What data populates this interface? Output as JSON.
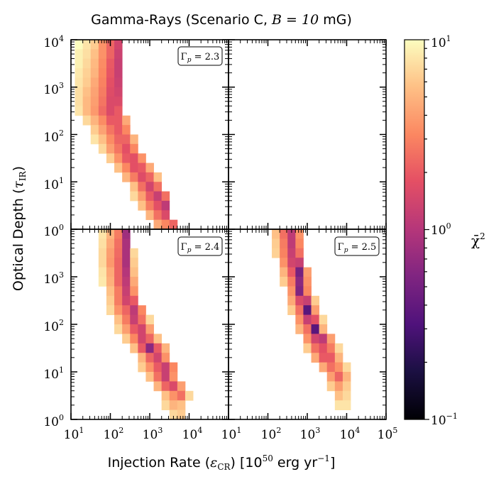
{
  "chart_data": {
    "type": "heatmap",
    "title_prefix": "Gamma-Rays (Scenario C, ",
    "title_math": "B = 10",
    "title_suffix": " mG)",
    "xlabel_prefix": "Injection Rate (",
    "xlabel_sym": "ε",
    "xlabel_sub": "CR",
    "xlabel_suffix": ") [10",
    "xlabel_sup": "50",
    "xlabel_end": " erg yr",
    "xlabel_end_sup": "−1",
    "xlabel_close": "]",
    "ylabel_prefix": "Optical Depth (",
    "ylabel_sym": "τ",
    "ylabel_sub": "IR",
    "ylabel_close": ")",
    "xlim": [
      1,
      5
    ],
    "ylim": [
      0,
      4
    ],
    "axis_scale": "log10",
    "x_ticks": [
      {
        "base": "10",
        "exp": "1"
      },
      {
        "base": "10",
        "exp": "2"
      },
      {
        "base": "10",
        "exp": "3"
      },
      {
        "base": "10",
        "exp": "4"
      },
      {
        "base": "10",
        "exp": "1"
      },
      {
        "base": "10",
        "exp": "2"
      },
      {
        "base": "10",
        "exp": "3"
      },
      {
        "base": "10",
        "exp": "4"
      },
      {
        "base": "10",
        "exp": "5"
      }
    ],
    "y_ticks_top": [
      {
        "base": "10",
        "exp": "4"
      },
      {
        "base": "10",
        "exp": "3"
      },
      {
        "base": "10",
        "exp": "2"
      },
      {
        "base": "10",
        "exp": "1"
      },
      {
        "base": "10",
        "exp": "0"
      }
    ],
    "y_ticks_bottom": [
      {
        "base": "10",
        "exp": "3"
      },
      {
        "base": "10",
        "exp": "2"
      },
      {
        "base": "10",
        "exp": "1"
      },
      {
        "base": "10",
        "exp": "0"
      }
    ],
    "colorbar": {
      "label": "χ̄",
      "label_sup": "2",
      "scale": "log10",
      "range_log": [
        -1,
        1
      ],
      "ticks": [
        {
          "base": "10",
          "exp": "1",
          "log": 1
        },
        {
          "base": "10",
          "exp": "0",
          "log": 0
        },
        {
          "base": "10",
          "exp": "−1",
          "log": -1
        }
      ],
      "colormap": "magma"
    },
    "panels": [
      {
        "id": "top-left",
        "label_sym": "Γ",
        "label_sub": "p",
        "label_val": " = 2.3",
        "rows": [
          {
            "y0": 3.8,
            "y1": 4.0,
            "x0": 1.1,
            "values": [
              1.0,
              0.9,
              0.8,
              0.55,
              0.35,
              0.15
            ]
          },
          {
            "y0": 3.6,
            "y1": 3.8,
            "x0": 1.1,
            "values": [
              0.95,
              0.88,
              0.75,
              0.55,
              0.35,
              0.12
            ]
          },
          {
            "y0": 3.4,
            "y1": 3.6,
            "x0": 1.1,
            "values": [
              0.95,
              0.85,
              0.72,
              0.52,
              0.3,
              0.1
            ]
          },
          {
            "y0": 3.2,
            "y1": 3.4,
            "x0": 1.1,
            "values": [
              0.92,
              0.82,
              0.7,
              0.5,
              0.28,
              0.1
            ]
          },
          {
            "y0": 3.0,
            "y1": 3.2,
            "x0": 1.1,
            "values": [
              0.9,
              0.8,
              0.65,
              0.48,
              0.25,
              0.12
            ]
          },
          {
            "y0": 2.8,
            "y1": 3.0,
            "x0": 1.1,
            "values": [
              0.88,
              0.75,
              0.62,
              0.45,
              0.22,
              0.15
            ]
          },
          {
            "y0": 2.6,
            "y1": 2.8,
            "x0": 1.1,
            "values": [
              0.88,
              0.72,
              0.6,
              0.42,
              0.2,
              0.2
            ]
          },
          {
            "y0": 2.4,
            "y1": 2.6,
            "x0": 1.1,
            "values": [
              0.9,
              0.72,
              0.58,
              0.38,
              0.2,
              0.3
            ]
          },
          {
            "y0": 2.2,
            "y1": 2.4,
            "x0": 1.3,
            "values": [
              0.85,
              0.7,
              0.52,
              0.3,
              0.3,
              0.65
            ]
          },
          {
            "y0": 2.0,
            "y1": 2.2,
            "x0": 1.5,
            "values": [
              0.8,
              0.62,
              0.42,
              0.3,
              0.5
            ]
          },
          {
            "y0": 1.8,
            "y1": 2.0,
            "x0": 1.5,
            "values": [
              0.9,
              0.75,
              0.52,
              0.35,
              0.35,
              0.7
            ]
          },
          {
            "y0": 1.6,
            "y1": 1.8,
            "x0": 1.7,
            "values": [
              0.85,
              0.6,
              0.42,
              0.25,
              0.5
            ]
          },
          {
            "y0": 1.4,
            "y1": 1.6,
            "x0": 1.9,
            "values": [
              0.8,
              0.55,
              0.3,
              0.25,
              0.55
            ]
          },
          {
            "y0": 1.2,
            "y1": 1.4,
            "x0": 2.1,
            "values": [
              0.75,
              0.5,
              0.25,
              0.3,
              0.65
            ]
          },
          {
            "y0": 1.0,
            "y1": 1.2,
            "x0": 2.3,
            "values": [
              0.7,
              0.45,
              0.22,
              0.35,
              0.75
            ]
          },
          {
            "y0": 0.8,
            "y1": 1.0,
            "x0": 2.5,
            "values": [
              0.75,
              0.4,
              0.15,
              0.4
            ]
          },
          {
            "y0": 0.6,
            "y1": 0.8,
            "x0": 2.5,
            "values": [
              0.85,
              0.6,
              0.3,
              0.1,
              0.4
            ]
          },
          {
            "y0": 0.4,
            "y1": 0.6,
            "x0": 2.7,
            "values": [
              0.75,
              0.45,
              0.25,
              0.05
            ]
          },
          {
            "y0": 0.2,
            "y1": 0.4,
            "x0": 2.9,
            "values": [
              0.7,
              0.4,
              0.2
            ]
          },
          {
            "y0": 0.0,
            "y1": 0.2,
            "x0": 3.1,
            "values": [
              0.65,
              0.5,
              0.35
            ]
          }
        ]
      },
      {
        "id": "top-right",
        "rows": []
      },
      {
        "id": "bottom-left",
        "label_sym": "Γ",
        "label_sub": "p",
        "label_val": " = 2.4",
        "rows": [
          {
            "y0": 3.8,
            "y1": 4.0,
            "x0": 1.7,
            "values": [
              0.9,
              0.7,
              0.45,
              -0.1
            ]
          },
          {
            "y0": 3.6,
            "y1": 3.8,
            "x0": 1.7,
            "values": [
              0.88,
              0.65,
              0.4,
              -0.05
            ]
          },
          {
            "y0": 3.4,
            "y1": 3.6,
            "x0": 1.7,
            "values": [
              0.85,
              0.6,
              0.38,
              -0.05,
              0.85
            ]
          },
          {
            "y0": 3.2,
            "y1": 3.4,
            "x0": 1.7,
            "values": [
              0.85,
              0.58,
              0.35,
              -0.05,
              0.8
            ]
          },
          {
            "y0": 3.0,
            "y1": 3.2,
            "x0": 1.7,
            "values": [
              0.9,
              0.65,
              0.35,
              0.0,
              0.75
            ]
          },
          {
            "y0": 2.8,
            "y1": 3.0,
            "x0": 1.7,
            "values": [
              0.92,
              0.68,
              0.35,
              0.05,
              0.65
            ]
          },
          {
            "y0": 2.6,
            "y1": 2.8,
            "x0": 1.9,
            "values": [
              0.75,
              0.45,
              0.1,
              0.55
            ]
          },
          {
            "y0": 2.4,
            "y1": 2.6,
            "x0": 1.9,
            "values": [
              0.8,
              0.45,
              0.15,
              0.3
            ]
          },
          {
            "y0": 2.2,
            "y1": 2.4,
            "x0": 1.9,
            "values": [
              0.85,
              0.55,
              0.35,
              0.05,
              0.5
            ]
          },
          {
            "y0": 2.0,
            "y1": 2.2,
            "x0": 2.1,
            "values": [
              0.75,
              0.45,
              0.1,
              0.4,
              0.85
            ]
          },
          {
            "y0": 1.8,
            "y1": 2.0,
            "x0": 2.1,
            "values": [
              0.85,
              0.6,
              0.3,
              0.15,
              0.6
            ]
          },
          {
            "y0": 1.6,
            "y1": 1.8,
            "x0": 2.3,
            "values": [
              0.8,
              0.5,
              0.15,
              0.35,
              0.75
            ]
          },
          {
            "y0": 1.4,
            "y1": 1.6,
            "x0": 2.5,
            "values": [
              0.75,
              0.3,
              -0.2,
              0.3,
              0.7
            ]
          },
          {
            "y0": 1.2,
            "y1": 1.4,
            "x0": 2.7,
            "values": [
              0.7,
              0.35,
              0.15,
              0.55
            ]
          },
          {
            "y0": 1.0,
            "y1": 1.2,
            "x0": 2.7,
            "values": [
              0.8,
              0.55,
              0.3,
              0.1,
              0.5
            ]
          },
          {
            "y0": 0.8,
            "y1": 1.0,
            "x0": 2.9,
            "values": [
              0.75,
              0.4,
              0.1,
              0.55
            ]
          },
          {
            "y0": 0.6,
            "y1": 0.8,
            "x0": 3.1,
            "values": [
              0.7,
              0.35,
              0.2,
              0.6
            ]
          },
          {
            "y0": 0.4,
            "y1": 0.6,
            "x0": 3.3,
            "values": [
              0.75,
              0.55,
              0.4,
              0.85
            ]
          },
          {
            "y0": 0.2,
            "y1": 0.4,
            "x0": 3.3,
            "values": [
              0.85,
              0.7,
              0.75
            ]
          },
          {
            "y0": 0.0,
            "y1": 0.2,
            "x0": 3.5,
            "values": [
              0.85,
              0.8
            ]
          }
        ]
      },
      {
        "id": "bottom-right",
        "label_sym": "Γ",
        "label_sub": "p",
        "label_val": " = 2.5",
        "rows": [
          {
            "y0": 3.8,
            "y1": 4.0,
            "x0": 2.1,
            "values": [
              0.75,
              0.4,
              0.05,
              0.55
            ]
          },
          {
            "y0": 3.6,
            "y1": 3.8,
            "x0": 2.1,
            "values": [
              0.8,
              0.45,
              0.05,
              0.5
            ]
          },
          {
            "y0": 3.4,
            "y1": 3.6,
            "x0": 2.1,
            "values": [
              0.82,
              0.48,
              0.1,
              0.4
            ]
          },
          {
            "y0": 3.2,
            "y1": 3.4,
            "x0": 2.3,
            "values": [
              0.55,
              0.15,
              0.1
            ]
          },
          {
            "y0": 3.0,
            "y1": 3.2,
            "x0": 2.3,
            "values": [
              0.7,
              0.3,
              -0.3,
              0.6
            ]
          },
          {
            "y0": 2.8,
            "y1": 3.0,
            "x0": 2.3,
            "values": [
              0.8,
              0.45,
              -0.2,
              0.55
            ]
          },
          {
            "y0": 2.6,
            "y1": 2.8,
            "x0": 2.5,
            "values": [
              0.55,
              -0.25,
              0.5
            ]
          },
          {
            "y0": 2.4,
            "y1": 2.6,
            "x0": 2.5,
            "values": [
              0.65,
              0.2,
              0.1,
              0.8
            ]
          },
          {
            "y0": 2.2,
            "y1": 2.4,
            "x0": 2.5,
            "values": [
              0.8,
              0.4,
              -0.45,
              0.6
            ]
          },
          {
            "y0": 2.0,
            "y1": 2.2,
            "x0": 2.7,
            "values": [
              0.55,
              0.1,
              0.25,
              0.85
            ]
          },
          {
            "y0": 1.8,
            "y1": 2.0,
            "x0": 2.7,
            "values": [
              0.7,
              0.4,
              -0.45,
              0.7
            ]
          },
          {
            "y0": 1.6,
            "y1": 1.8,
            "x0": 2.9,
            "values": [
              0.55,
              0.15,
              0.05,
              0.6
            ]
          },
          {
            "y0": 1.4,
            "y1": 1.6,
            "x0": 2.9,
            "values": [
              0.8,
              0.4,
              0.25,
              0.45,
              0.85
            ]
          },
          {
            "y0": 1.2,
            "y1": 1.4,
            "x0": 3.1,
            "values": [
              0.65,
              0.3,
              0.3,
              0.7
            ]
          },
          {
            "y0": 1.0,
            "y1": 1.2,
            "x0": 3.3,
            "values": [
              0.65,
              0.4,
              0.55,
              0.85
            ]
          },
          {
            "y0": 0.8,
            "y1": 1.0,
            "x0": 3.5,
            "values": [
              0.6,
              0.35,
              0.7
            ]
          },
          {
            "y0": 0.6,
            "y1": 0.8,
            "x0": 3.5,
            "values": [
              0.8,
              0.6,
              0.8
            ]
          },
          {
            "y0": 0.4,
            "y1": 0.6,
            "x0": 3.7,
            "values": [
              0.75,
              0.85
            ]
          },
          {
            "y0": 0.2,
            "y1": 0.4,
            "x0": 3.7,
            "values": [
              0.9,
              0.9
            ]
          }
        ]
      }
    ]
  }
}
